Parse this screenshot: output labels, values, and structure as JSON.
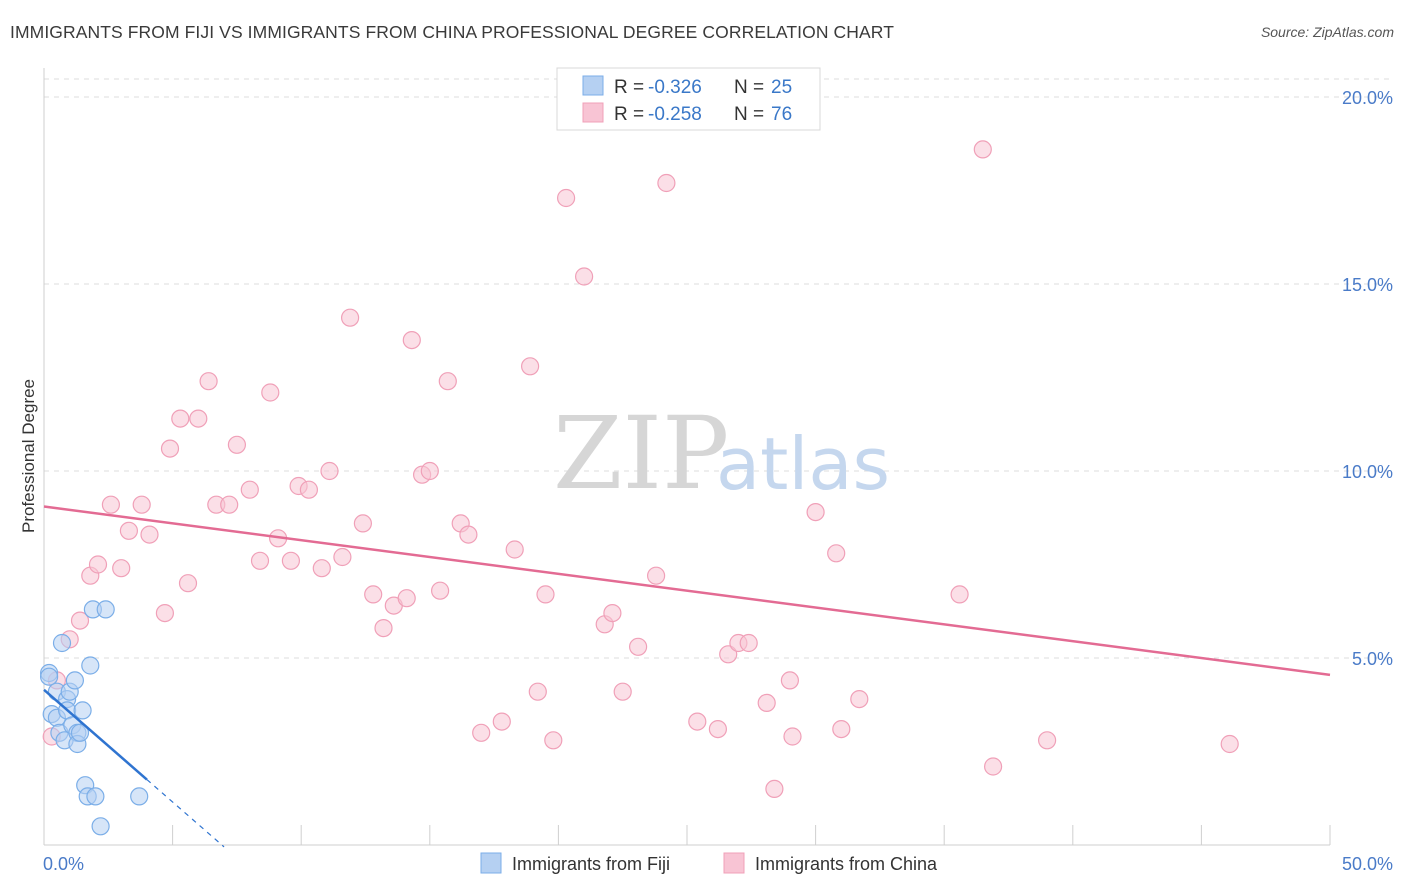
{
  "chart_data": {
    "type": "scatter",
    "title": "IMMIGRANTS FROM FIJI VS IMMIGRANTS FROM CHINA PROFESSIONAL DEGREE CORRELATION CHART",
    "source": "Source: ZipAtlas.com",
    "xlabel": "",
    "ylabel": "Professional Degree",
    "xlim": [
      0,
      50
    ],
    "ylim": [
      0,
      20.5
    ],
    "x_tick_labels": [
      "0.0%",
      "50.0%"
    ],
    "y_ticks": [
      5,
      10,
      15,
      20
    ],
    "y_tick_labels": [
      "5.0%",
      "10.0%",
      "15.0%",
      "20.0%"
    ],
    "watermark": {
      "zip": "ZIP",
      "atlas": "atlas"
    },
    "legend": {
      "r_label": "R =",
      "n_label": "N =",
      "entries": [
        {
          "name": "Immigrants from Fiji",
          "r": "-0.326",
          "n": "25"
        },
        {
          "name": "Immigrants from China",
          "r": "-0.258",
          "n": "76"
        }
      ]
    },
    "series": [
      {
        "name": "Immigrants from Fiji",
        "color": "#7baee8",
        "fill": "#b5d0f2",
        "line_color": "#2f74d0",
        "trend": {
          "x0": 0.0,
          "y0": 4.15,
          "x1": 4.0,
          "y1": 1.75,
          "dash_to_x": 7.0,
          "dash_to_y": -0.05
        },
        "points": [
          [
            0.2,
            4.6
          ],
          [
            0.2,
            4.5
          ],
          [
            0.3,
            3.5
          ],
          [
            0.5,
            4.1
          ],
          [
            0.5,
            3.4
          ],
          [
            0.6,
            3.0
          ],
          [
            0.7,
            5.4
          ],
          [
            0.8,
            2.8
          ],
          [
            0.9,
            3.9
          ],
          [
            0.9,
            3.6
          ],
          [
            1.0,
            4.1
          ],
          [
            1.1,
            3.2
          ],
          [
            1.2,
            4.4
          ],
          [
            1.3,
            3.0
          ],
          [
            1.3,
            2.7
          ],
          [
            1.4,
            3.0
          ],
          [
            1.5,
            3.6
          ],
          [
            1.6,
            1.6
          ],
          [
            1.7,
            1.3
          ],
          [
            1.8,
            4.8
          ],
          [
            1.9,
            6.3
          ],
          [
            2.0,
            1.3
          ],
          [
            2.2,
            0.5
          ],
          [
            2.4,
            6.3
          ],
          [
            3.7,
            1.3
          ]
        ]
      },
      {
        "name": "Immigrants from China",
        "color": "#f0a0b8",
        "fill": "#f8c4d4",
        "line_color": "#e36b93",
        "trend": {
          "x0": 0.0,
          "y0": 9.05,
          "x1": 50.0,
          "y1": 4.55
        },
        "points": [
          [
            0.3,
            2.9
          ],
          [
            0.5,
            4.4
          ],
          [
            1.0,
            5.5
          ],
          [
            1.4,
            6.0
          ],
          [
            1.8,
            7.2
          ],
          [
            2.1,
            7.5
          ],
          [
            2.6,
            9.1
          ],
          [
            3.0,
            7.4
          ],
          [
            3.3,
            8.4
          ],
          [
            3.8,
            9.1
          ],
          [
            4.1,
            8.3
          ],
          [
            4.7,
            6.2
          ],
          [
            4.9,
            10.6
          ],
          [
            5.3,
            11.4
          ],
          [
            5.6,
            7.0
          ],
          [
            6.0,
            11.4
          ],
          [
            6.4,
            12.4
          ],
          [
            6.7,
            9.1
          ],
          [
            7.2,
            9.1
          ],
          [
            7.5,
            10.7
          ],
          [
            8.0,
            9.5
          ],
          [
            8.4,
            7.6
          ],
          [
            8.8,
            12.1
          ],
          [
            9.1,
            8.2
          ],
          [
            9.6,
            7.6
          ],
          [
            9.9,
            9.6
          ],
          [
            10.3,
            9.5
          ],
          [
            10.8,
            7.4
          ],
          [
            11.1,
            10.0
          ],
          [
            11.6,
            7.7
          ],
          [
            11.9,
            14.1
          ],
          [
            12.4,
            8.6
          ],
          [
            12.8,
            6.7
          ],
          [
            13.2,
            5.8
          ],
          [
            13.6,
            6.4
          ],
          [
            14.1,
            6.6
          ],
          [
            14.3,
            13.5
          ],
          [
            14.7,
            9.9
          ],
          [
            15.0,
            10.0
          ],
          [
            15.4,
            6.8
          ],
          [
            15.7,
            12.4
          ],
          [
            16.2,
            8.6
          ],
          [
            16.5,
            8.3
          ],
          [
            17.0,
            3.0
          ],
          [
            17.8,
            3.3
          ],
          [
            18.3,
            7.9
          ],
          [
            18.9,
            12.8
          ],
          [
            19.2,
            4.1
          ],
          [
            19.5,
            6.7
          ],
          [
            19.8,
            2.8
          ],
          [
            20.3,
            17.3
          ],
          [
            21.0,
            15.2
          ],
          [
            21.8,
            5.9
          ],
          [
            22.1,
            6.2
          ],
          [
            22.5,
            4.1
          ],
          [
            23.1,
            5.3
          ],
          [
            23.8,
            7.2
          ],
          [
            24.2,
            17.7
          ],
          [
            25.4,
            3.3
          ],
          [
            26.2,
            3.1
          ],
          [
            26.6,
            5.1
          ],
          [
            27.0,
            5.4
          ],
          [
            27.4,
            5.4
          ],
          [
            28.1,
            3.8
          ],
          [
            28.4,
            1.5
          ],
          [
            29.0,
            4.4
          ],
          [
            29.1,
            2.9
          ],
          [
            30.0,
            8.9
          ],
          [
            30.8,
            7.8
          ],
          [
            31.0,
            3.1
          ],
          [
            31.7,
            3.9
          ],
          [
            35.6,
            6.7
          ],
          [
            36.5,
            18.6
          ],
          [
            36.9,
            2.1
          ],
          [
            39.0,
            2.8
          ],
          [
            46.1,
            2.7
          ]
        ]
      }
    ]
  }
}
